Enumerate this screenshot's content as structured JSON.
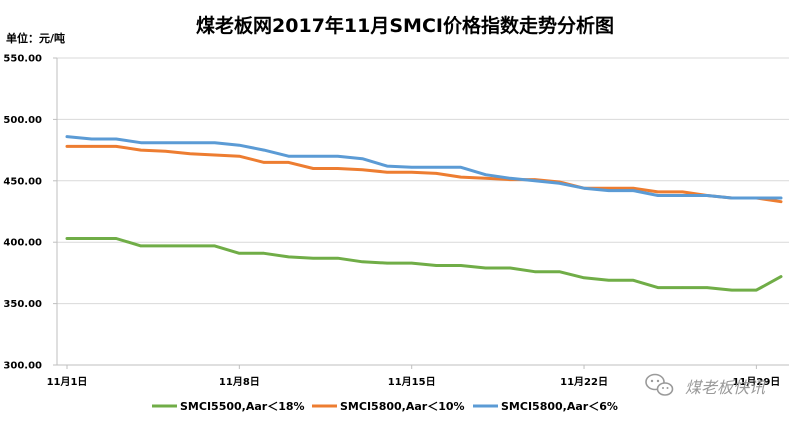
{
  "chart_data": {
    "type": "line",
    "title": "煤老板网2017年11月SMCI价格指数走势分析图",
    "ylabel": "单位：元/吨",
    "ylim": [
      300,
      550
    ],
    "yticks": [
      300,
      350,
      400,
      450,
      500,
      550
    ],
    "ytick_labels": [
      "300.00",
      "350.00",
      "400.00",
      "450.00",
      "500.00",
      "550.00"
    ],
    "x_start_label": "11月1日",
    "xtick_labels": [
      "11月1日",
      "11月8日",
      "11月15日",
      "11月22日",
      "11月29日"
    ],
    "xtick_positions": [
      1,
      8,
      15,
      22,
      29
    ],
    "grid": "horizontal",
    "legend_position": "bottom",
    "x": [
      1,
      2,
      3,
      4,
      5,
      6,
      7,
      8,
      9,
      10,
      11,
      12,
      13,
      14,
      15,
      16,
      17,
      18,
      19,
      20,
      21,
      22,
      23,
      24,
      25,
      26,
      27,
      28,
      29,
      30
    ],
    "series": [
      {
        "name": "SMCI5500,Aar＜18%",
        "color": "#70ad47",
        "values": [
          403,
          403,
          403,
          397,
          397,
          397,
          397,
          391,
          391,
          388,
          387,
          387,
          384,
          383,
          383,
          381,
          381,
          379,
          379,
          376,
          376,
          371,
          369,
          369,
          363,
          363,
          363,
          361,
          361,
          372
        ]
      },
      {
        "name": "SMCI5800,Aar＜10%",
        "color": "#ed7d31",
        "values": [
          478,
          478,
          478,
          475,
          474,
          472,
          471,
          470,
          465,
          465,
          460,
          460,
          459,
          457,
          457,
          456,
          453,
          452,
          451,
          451,
          449,
          444,
          444,
          444,
          441,
          441,
          438,
          436,
          436,
          433
        ]
      },
      {
        "name": "SMCI5800,Aar＜6%",
        "color": "#5b9bd5",
        "values": [
          486,
          484,
          484,
          481,
          481,
          481,
          481,
          479,
          475,
          470,
          470,
          470,
          468,
          462,
          461,
          461,
          461,
          455,
          452,
          450,
          448,
          444,
          442,
          442,
          438,
          438,
          438,
          436,
          436,
          436
        ]
      }
    ]
  },
  "watermark": {
    "text": "煤老板快讯",
    "icon": "wechat-icon"
  }
}
